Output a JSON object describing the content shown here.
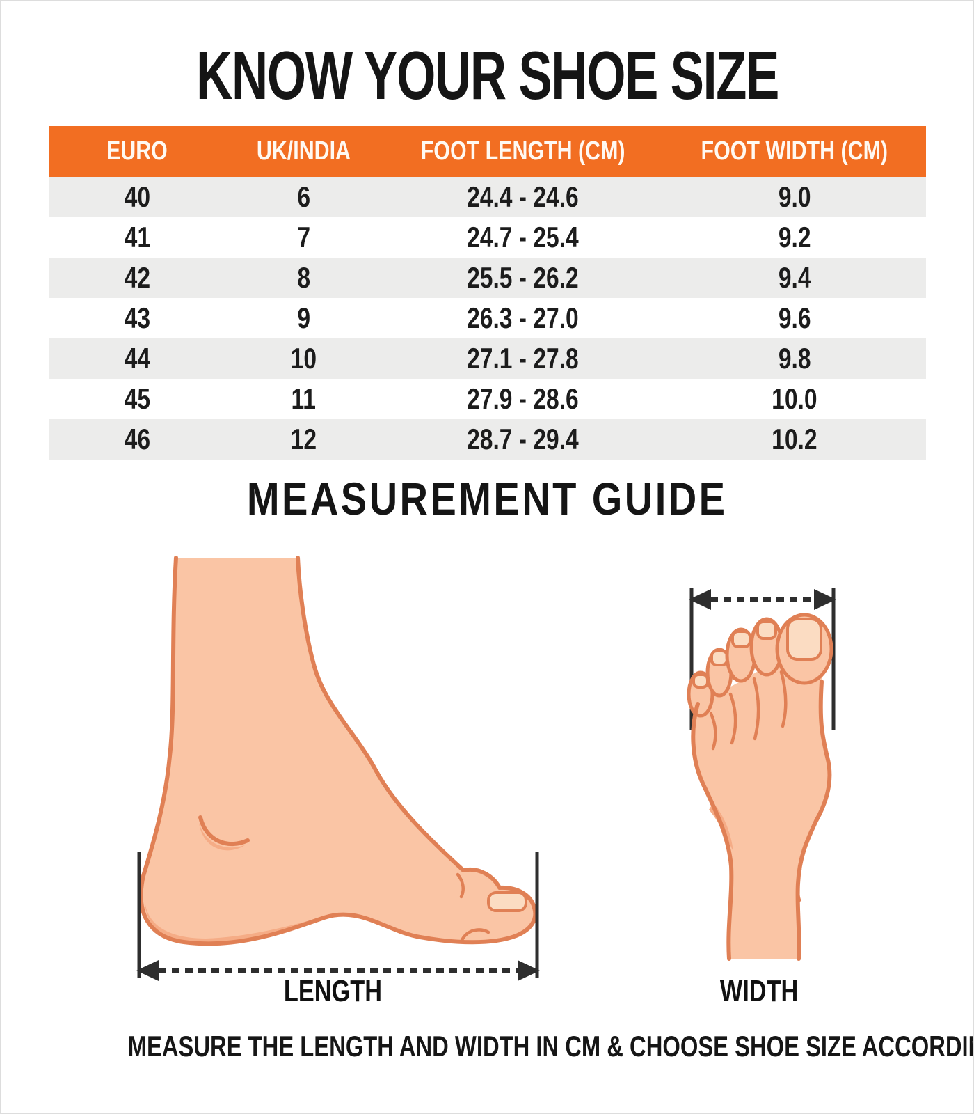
{
  "page": {
    "title": "KNOW YOUR SHOE SIZE",
    "section_title": "MEASUREMENT GUIDE",
    "footer_note": "MEASURE THE LENGTH AND WIDTH IN CM & CHOOSE SHOE SIZE ACCORDINGLY"
  },
  "size_table": {
    "columns": [
      "EURO",
      "UK/INDIA",
      "FOOT LENGTH (CM)",
      "FOOT WIDTH (CM)"
    ],
    "rows": [
      [
        "40",
        "6",
        "24.4 - 24.6",
        "9.0"
      ],
      [
        "41",
        "7",
        "24.7 - 25.4",
        "9.2"
      ],
      [
        "42",
        "8",
        "25.5 - 26.2",
        "9.4"
      ],
      [
        "43",
        "9",
        "26.3 - 27.0",
        "9.6"
      ],
      [
        "44",
        "10",
        "27.1 - 27.8",
        "9.8"
      ],
      [
        "45",
        "11",
        "27.9 - 28.6",
        "10.0"
      ],
      [
        "46",
        "12",
        "28.7 - 29.4",
        "10.2"
      ]
    ]
  },
  "measurement_guide": {
    "length_label": "LENGTH",
    "width_label": "WIDTH",
    "icons": [
      "side-foot-illustration",
      "top-foot-illustration",
      "length-arrow",
      "width-arrow"
    ]
  },
  "colors": {
    "header_orange": "#F26E22",
    "row_gray": "#ECECEB",
    "text_dark": "#1C1C1C",
    "skin": "#FAC5A5",
    "skin_outline": "#E08055",
    "skin_shade": "#F5AC86",
    "nail": "#FBDCC2",
    "line_dark": "#2E2E2E",
    "page_border": "#DDDDDD"
  }
}
